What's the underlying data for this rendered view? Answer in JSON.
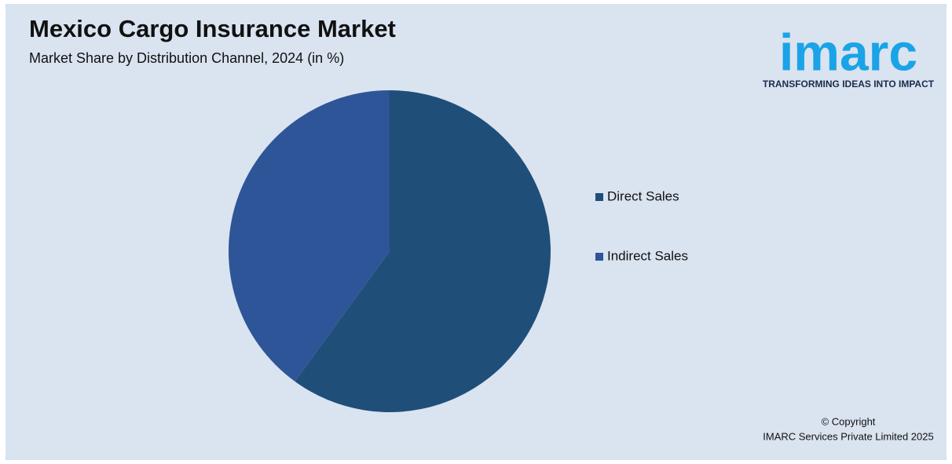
{
  "chart_data": {
    "type": "pie",
    "title": "Mexico Cargo Insurance Market",
    "subtitle": "Market Share by Distribution Channel, 2024 (in %)",
    "categories": [
      "Direct Sales",
      "Indirect Sales"
    ],
    "values": [
      60,
      40
    ],
    "colors": [
      "#1f4e79",
      "#2e5597"
    ]
  },
  "logo": {
    "name": "imarc",
    "tagline": "TRANSFORMING IDEAS INTO IMPACT"
  },
  "footer": {
    "line1": "© Copyright",
    "line2": "IMARC Services Private Limited 2025"
  }
}
